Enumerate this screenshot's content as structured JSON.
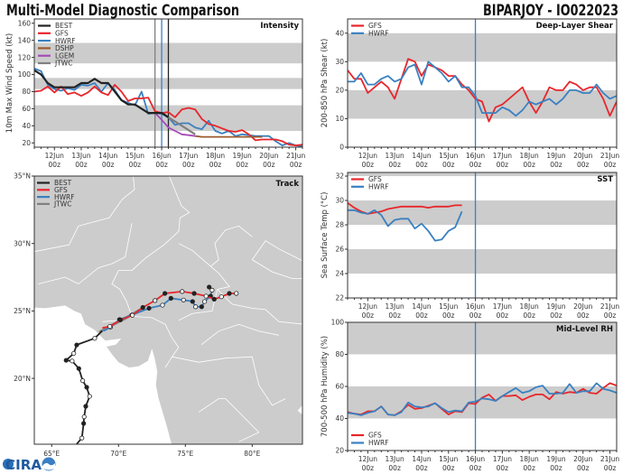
{
  "header": {
    "title": "Multi-Model Diagnostic Comparison",
    "storm": "BIPARJOY - IO022023"
  },
  "logo": {
    "text": "CIRA"
  },
  "colors": {
    "BEST": "#222222",
    "GFS": "#e8262b",
    "HWRF": "#3a80c0",
    "DSHP": "#9c5a2e",
    "LGEM": "#a64ab8",
    "JTWC": "#808080",
    "band": "#cccccc",
    "land": "#cccccc",
    "border": "#ffffff"
  },
  "chart_data": [
    {
      "id": "intensity",
      "type": "line",
      "title": "Intensity",
      "ylabel": "10m Max Wind Speed (kt)",
      "ylim": [
        15,
        165
      ],
      "yticks": [
        20,
        40,
        60,
        80,
        100,
        120,
        140,
        160
      ],
      "xlim": [
        "11Jun 06z",
        "21Jun 06z"
      ],
      "xticks": [
        {
          "date": "12Jun",
          "time": "00z"
        },
        {
          "date": "13Jun",
          "time": "00z"
        },
        {
          "date": "14Jun",
          "time": "00z"
        },
        {
          "date": "15Jun",
          "time": "00z"
        },
        {
          "date": "16Jun",
          "time": "00z"
        },
        {
          "date": "17Jun",
          "time": "00z"
        },
        {
          "date": "18Jun",
          "time": "00z"
        },
        {
          "date": "19Jun",
          "time": "00z"
        },
        {
          "date": "20Jun",
          "time": "00z"
        },
        {
          "date": "21Jun",
          "time": "00z"
        }
      ],
      "bands": [
        [
          34,
          64
        ],
        [
          83,
          96
        ],
        [
          113,
          137
        ]
      ],
      "vlines": [
        {
          "x": "15Jun 18z",
          "color": "#808080"
        },
        {
          "x": "16Jun 00z",
          "color": "#3a80c0"
        },
        {
          "x": "16Jun 06z",
          "color": "#222222"
        }
      ],
      "legend": "top-left",
      "legend_order": [
        "BEST",
        "GFS",
        "HWRF",
        "DSHP",
        "LGEM",
        "JTWC"
      ],
      "series": [
        {
          "name": "HWRF",
          "values": [
            107,
            104,
            88,
            83,
            81,
            84,
            82,
            88,
            87,
            90,
            80,
            90,
            82,
            70,
            67,
            64,
            80,
            54,
            55,
            54,
            50,
            41,
            43,
            43,
            38,
            36,
            46,
            34,
            31,
            34,
            28,
            30,
            29,
            28,
            28,
            28,
            22,
            17,
            20,
            17,
            16
          ]
        },
        {
          "name": "GFS",
          "values": [
            80,
            81,
            86,
            79,
            86,
            77,
            79,
            75,
            79,
            86,
            79,
            76,
            88,
            80,
            69,
            72,
            72,
            73,
            57,
            55,
            56,
            50,
            59,
            61,
            59,
            48,
            42,
            40,
            37,
            34,
            33,
            35,
            30,
            23,
            24,
            24,
            24,
            22,
            18,
            17,
            18
          ]
        },
        {
          "name": "DSHP",
          "values": [
            null,
            null,
            null,
            null,
            null,
            null,
            null,
            null,
            null,
            null,
            null,
            null,
            null,
            null,
            null,
            null,
            null,
            null,
            null,
            null,
            null,
            null,
            null,
            null,
            28,
            27,
            27,
            27,
            27,
            27,
            27,
            27,
            27,
            27,
            27,
            null,
            null,
            null,
            null,
            null,
            null
          ]
        },
        {
          "name": "LGEM",
          "values": [
            null,
            null,
            null,
            null,
            null,
            null,
            null,
            null,
            null,
            null,
            null,
            null,
            null,
            null,
            null,
            null,
            null,
            null,
            55,
            47,
            38,
            34,
            30,
            29,
            28,
            null,
            null,
            null,
            null,
            null,
            null,
            null,
            null,
            null,
            null,
            null,
            null,
            null,
            null,
            null,
            null
          ]
        },
        {
          "name": "JTWC",
          "values": [
            null,
            null,
            null,
            null,
            null,
            null,
            null,
            null,
            null,
            null,
            null,
            null,
            null,
            null,
            null,
            null,
            null,
            null,
            55,
            55,
            50,
            45,
            40,
            35,
            30,
            null,
            null,
            null,
            null,
            null,
            null,
            null,
            null,
            null,
            null,
            null,
            null,
            null,
            null,
            null,
            null
          ]
        },
        {
          "name": "BEST",
          "values": [
            105,
            100,
            90,
            85,
            85,
            85,
            85,
            90,
            90,
            95,
            90,
            90,
            80,
            70,
            65,
            65,
            60,
            55,
            55,
            55,
            50,
            null,
            null,
            null,
            null,
            null,
            null,
            null,
            null,
            null,
            null,
            null,
            null,
            null,
            null,
            null,
            null,
            null,
            null,
            null,
            null
          ]
        }
      ]
    },
    {
      "id": "shear",
      "type": "line",
      "title": "Deep-Layer Shear",
      "ylabel": "200-850 hPa Shear (kt)",
      "ylim": [
        0,
        45
      ],
      "yticks": [
        0,
        10,
        20,
        30,
        40
      ],
      "xlim": [
        "11Jun 06z",
        "21Jun 06z"
      ],
      "bands": [
        [
          10,
          20
        ],
        [
          30,
          40
        ]
      ],
      "vlines": [
        {
          "x": "16Jun 00z",
          "color": "#3a80c0"
        }
      ],
      "legend": "top-left",
      "legend_order": [
        "GFS",
        "HWRF"
      ],
      "series": [
        {
          "name": "GFS",
          "values": [
            27,
            24,
            24,
            19,
            21,
            23,
            21,
            17,
            24,
            31,
            30,
            25,
            29,
            28,
            27,
            25,
            25,
            22,
            20,
            17,
            16,
            9,
            14,
            15,
            17,
            19,
            21,
            16,
            12,
            16,
            21,
            20,
            20,
            23,
            22,
            20,
            21,
            21,
            17,
            11,
            16
          ]
        },
        {
          "name": "HWRF",
          "values": [
            23,
            23,
            26,
            22,
            22,
            24,
            25,
            23,
            24,
            28,
            29,
            22,
            30,
            28,
            26,
            23,
            25,
            21,
            21,
            18,
            12,
            12,
            12,
            14,
            13,
            11,
            13,
            16,
            15,
            16,
            17,
            15,
            17,
            20,
            20,
            19,
            19,
            22,
            19,
            17,
            18
          ]
        }
      ]
    },
    {
      "id": "sst",
      "type": "line",
      "title": "SST",
      "ylabel": "Sea Surface Temp (°C)",
      "ylim": [
        22,
        32.3
      ],
      "yticks": [
        22,
        24,
        26,
        28,
        30,
        32
      ],
      "xlim": [
        "11Jun 06z",
        "21Jun 06z"
      ],
      "bands": [
        [
          24,
          26
        ],
        [
          28,
          30
        ],
        [
          32,
          34
        ]
      ],
      "vlines": [
        {
          "x": "16Jun 00z",
          "color": "#3a80c0"
        }
      ],
      "legend": "top-left",
      "legend_order": [
        "GFS",
        "HWRF"
      ],
      "series": [
        {
          "name": "GFS",
          "values": [
            29.8,
            29.4,
            29.1,
            28.9,
            29.0,
            29.1,
            29.3,
            29.4,
            29.5,
            29.5,
            29.5,
            29.5,
            29.4,
            29.5,
            29.5,
            29.5,
            29.6,
            29.6,
            null,
            null,
            null,
            null,
            null,
            null,
            null,
            null,
            null,
            null,
            null,
            null,
            null,
            null,
            null,
            null,
            null,
            null,
            null,
            null,
            null,
            null,
            null
          ]
        },
        {
          "name": "HWRF",
          "values": [
            29.2,
            29.2,
            29.0,
            28.9,
            29.2,
            28.8,
            27.9,
            28.4,
            28.5,
            28.5,
            27.7,
            28.1,
            27.5,
            26.7,
            26.8,
            27.5,
            27.8,
            29.1,
            null,
            null,
            null,
            null,
            null,
            null,
            null,
            null,
            null,
            null,
            null,
            null,
            null,
            null,
            null,
            null,
            null,
            null,
            null,
            null,
            null,
            null,
            null
          ]
        }
      ]
    },
    {
      "id": "rh",
      "type": "line",
      "title": "Mid-Level RH",
      "ylabel": "700-500 hPa Humidity (%)",
      "ylim": [
        20,
        100
      ],
      "yticks": [
        20,
        40,
        60,
        80,
        100
      ],
      "xlim": [
        "11Jun 06z",
        "21Jun 06z"
      ],
      "bands": [
        [
          40,
          60
        ],
        [
          80,
          100
        ]
      ],
      "vlines": [
        {
          "x": "16Jun 00z",
          "color": "#3a80c0"
        }
      ],
      "legend": "bottom-left",
      "legend_order": [
        "GFS",
        "HWRF"
      ],
      "series": [
        {
          "name": "GFS",
          "values": [
            44,
            43,
            42.5,
            44.5,
            44.5,
            47.5,
            42.5,
            42,
            44.5,
            48.5,
            46,
            46.5,
            48,
            49.5,
            46,
            42.5,
            44.5,
            44,
            49.5,
            49,
            53,
            55,
            51,
            54,
            54,
            54.5,
            51.5,
            53.5,
            55,
            55,
            52,
            56.5,
            55.5,
            56.5,
            56,
            58.5,
            56,
            55.5,
            59,
            62,
            60.5
          ]
        },
        {
          "name": "HWRF",
          "values": [
            43.5,
            43,
            42,
            43.5,
            44.5,
            47.5,
            42.5,
            42,
            44,
            50,
            47.5,
            47,
            47.5,
            49.5,
            46.5,
            44,
            45,
            44.5,
            50,
            50.5,
            52.5,
            52,
            51,
            54,
            56.5,
            59,
            56,
            57,
            59.5,
            60.5,
            55.5,
            55.5,
            56,
            61.5,
            56,
            57,
            57,
            62,
            58.5,
            57.5,
            56
          ]
        }
      ]
    },
    {
      "id": "track",
      "type": "map",
      "title": "Track",
      "lon_range": [
        63.7,
        83.76
      ],
      "lat_range": [
        15.12,
        35
      ],
      "lon_ticks": [
        {
          "v": 65,
          "label": "65°E"
        },
        {
          "v": 70,
          "label": "70°E"
        },
        {
          "v": 75,
          "label": "75°E"
        },
        {
          "v": 80,
          "label": "80°E"
        }
      ],
      "lat_ticks": [
        {
          "v": 20,
          "label": "20°N"
        },
        {
          "v": 25,
          "label": "25°N"
        },
        {
          "v": 30,
          "label": "30°N"
        },
        {
          "v": 35,
          "label": "35°N"
        }
      ],
      "legend": "top-left",
      "legend_order": [
        "BEST",
        "GFS",
        "HWRF",
        "JTWC"
      ],
      "tracks": [
        {
          "name": "JTWC",
          "points": [
            [
              68.56,
              23.42
            ],
            [
              69.5,
              23.95
            ],
            [
              70.5,
              24.45
            ],
            [
              71.94,
              25.27
            ]
          ]
        },
        {
          "name": "HWRF",
          "points": [
            [
              68.9,
              23.52
            ],
            [
              69.4,
              23.8
            ],
            [
              70.07,
              24.36
            ],
            [
              71.0,
              24.7
            ],
            [
              72.28,
              25.2
            ],
            [
              73.29,
              25.43
            ],
            [
              73.92,
              25.94
            ],
            [
              74.86,
              25.81
            ],
            [
              75.54,
              25.7
            ],
            [
              75.77,
              25.31
            ],
            [
              76.22,
              25.31
            ],
            [
              76.44,
              25.7
            ],
            [
              76.89,
              26.1
            ],
            [
              77.0,
              26.54
            ],
            [
              76.78,
              26.77
            ]
          ]
        },
        {
          "name": "GFS",
          "points": [
            [
              68.79,
              23.75
            ],
            [
              69.35,
              23.85
            ],
            [
              70.14,
              24.34
            ],
            [
              71.04,
              24.68
            ],
            [
              71.82,
              25.26
            ],
            [
              72.73,
              25.77
            ],
            [
              73.47,
              26.3
            ],
            [
              74.76,
              26.44
            ],
            [
              75.66,
              26.3
            ],
            [
              76.55,
              26.1
            ],
            [
              77.16,
              25.87
            ],
            [
              77.7,
              26.05
            ],
            [
              78.29,
              26.3
            ],
            [
              78.81,
              26.3
            ]
          ]
        },
        {
          "name": "BEST",
          "points": [
            [
              66.87,
              15.13
            ],
            [
              67.26,
              15.58
            ],
            [
              67.39,
              16.66
            ],
            [
              67.43,
              17.15
            ],
            [
              67.55,
              17.93
            ],
            [
              67.84,
              18.67
            ],
            [
              67.62,
              19.34
            ],
            [
              67.32,
              19.83
            ],
            [
              67.03,
              20.73
            ],
            [
              66.53,
              21.29
            ],
            [
              66.08,
              21.34
            ],
            [
              66.65,
              21.85
            ],
            [
              66.87,
              22.48
            ],
            [
              68.22,
              22.97
            ],
            [
              68.78,
              23.52
            ]
          ]
        }
      ]
    }
  ]
}
